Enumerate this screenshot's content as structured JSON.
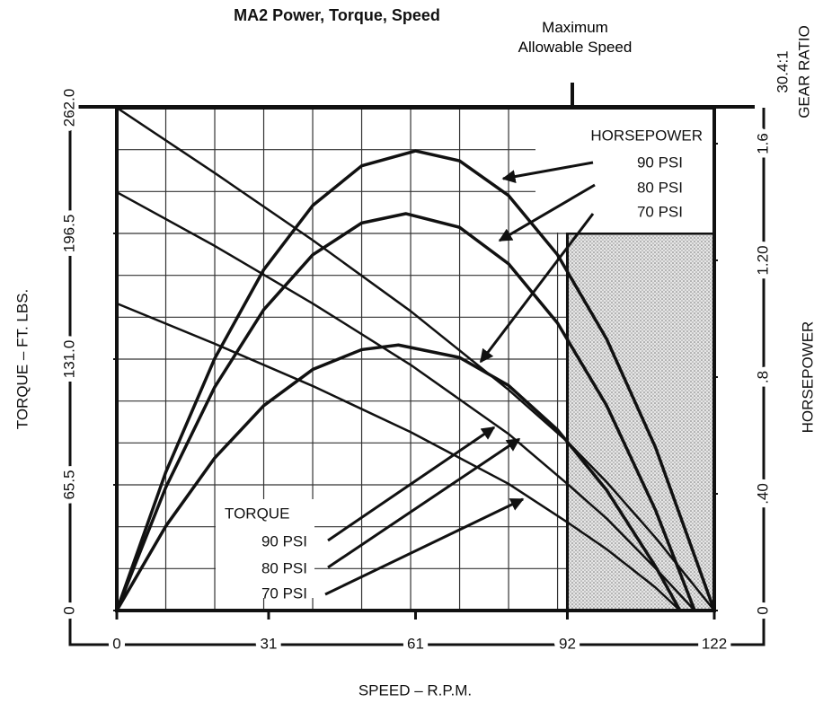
{
  "chart_data": {
    "type": "line",
    "title": "MA2 Power, Torque, Speed",
    "xlabel": "SPEED – R.P.M.",
    "ylabel": "TORQUE – FT. LBS.",
    "y2label": "HORSEPOWER",
    "gear_ratio_label": "GEAR RATIO",
    "gear_ratio": "30.4:1",
    "annotation": "Maximum Allowable Speed",
    "hp_group_label": "HORSEPOWER",
    "torque_group_label": "TORQUE",
    "xlim": [
      0,
      122
    ],
    "xticks": [
      0,
      31,
      61,
      92,
      122
    ],
    "ylim": [
      0,
      262
    ],
    "yticks": [
      0,
      65.5,
      {
        "value": 131,
        "label": "131.0"
      },
      196.5,
      {
        "value": 262,
        "label": "262.0"
      }
    ],
    "y2lim": [
      0,
      1.723
    ],
    "y2ticks": [
      0,
      {
        "value": 0.4,
        "label": ".40"
      },
      {
        "value": 0.8,
        "label": ".8"
      },
      {
        "value": 1.2,
        "label": "1.20"
      },
      1.6
    ],
    "shaded_region": {
      "xlim": [
        92,
        122
      ],
      "ylim": [
        0,
        196.5
      ]
    },
    "grid": true,
    "series": [
      {
        "name": "90 PSI",
        "group": "torque",
        "color": "#111",
        "x": [
          0,
          20,
          40,
          60,
          80,
          92,
          100,
          110,
          122
        ],
        "values": [
          262,
          228,
          193,
          156,
          115,
          88,
          67,
          38,
          0
        ]
      },
      {
        "name": "80 PSI",
        "group": "torque",
        "color": "#111",
        "x": [
          0,
          20,
          40,
          60,
          80,
          92,
          100,
          110,
          118
        ],
        "values": [
          218,
          190,
          160,
          128,
          92,
          66,
          48,
          22,
          0
        ]
      },
      {
        "name": "70 PSI",
        "group": "torque",
        "color": "#111",
        "x": [
          0,
          20,
          40,
          60,
          80,
          92,
          100,
          110,
          115
        ],
        "values": [
          160,
          139,
          117,
          93,
          66,
          46,
          32,
          12,
          0
        ]
      },
      {
        "name": "90 PSI",
        "group": "hp",
        "axis": "y2",
        "color": "#111",
        "x": [
          0,
          10,
          20,
          30,
          40,
          50,
          61,
          70,
          80,
          90,
          100,
          110,
          122
        ],
        "values": [
          0,
          0.474,
          0.864,
          1.168,
          1.388,
          1.524,
          1.575,
          1.541,
          1.422,
          1.219,
          0.931,
          0.559,
          0
        ]
      },
      {
        "name": "80 PSI",
        "group": "hp",
        "axis": "y2",
        "color": "#111",
        "x": [
          0,
          10,
          20,
          30,
          40,
          50,
          59,
          70,
          80,
          90,
          100,
          110,
          118
        ],
        "values": [
          0,
          0.422,
          0.766,
          1.031,
          1.219,
          1.328,
          1.36,
          1.313,
          1.188,
          0.985,
          0.703,
          0.344,
          0
        ]
      },
      {
        "name": "70 PSI",
        "group": "hp",
        "axis": "y2",
        "color": "#111",
        "x": [
          0,
          10,
          20,
          30,
          40,
          50,
          57.5,
          70,
          80,
          90,
          100,
          110,
          115
        ],
        "values": [
          0,
          0.289,
          0.523,
          0.702,
          0.826,
          0.894,
          0.91,
          0.867,
          0.771,
          0.619,
          0.413,
          0.151,
          0
        ]
      }
    ]
  }
}
